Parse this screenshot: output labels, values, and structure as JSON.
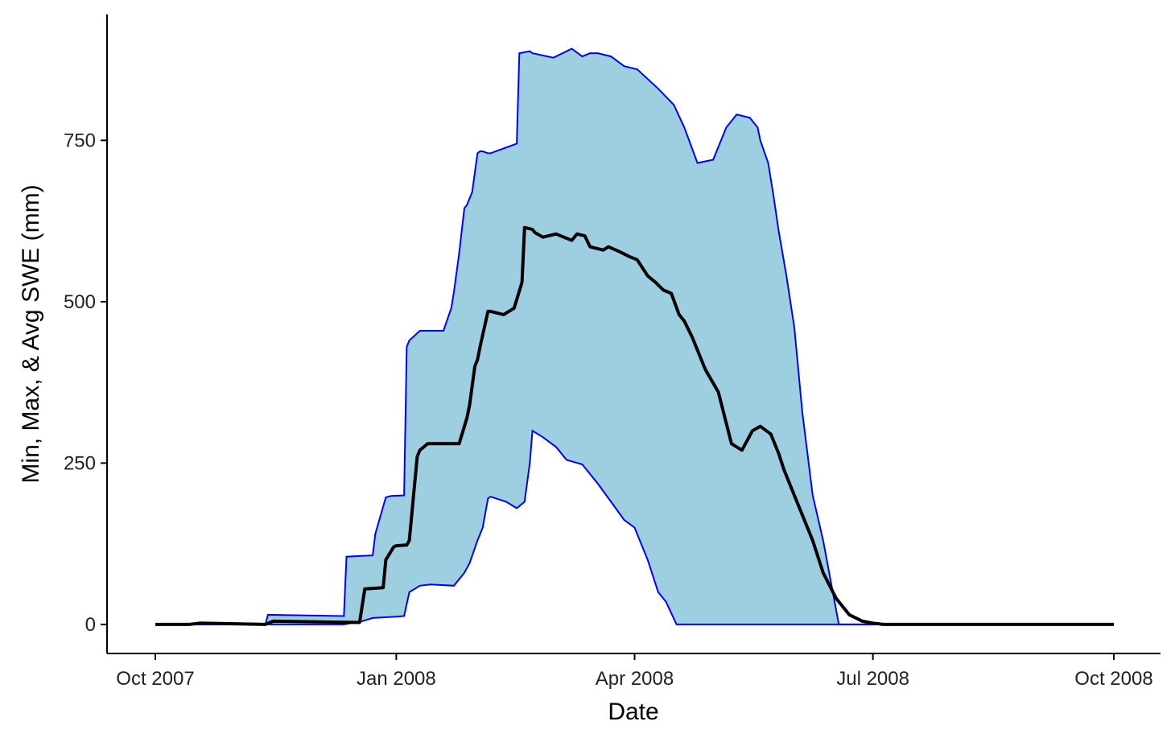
{
  "chart_data": {
    "type": "area",
    "title": "",
    "xlabel": "Date",
    "ylabel": "Min, Max, & Avg SWE (mm)",
    "xlim": [
      "2007-10-01",
      "2008-10-01"
    ],
    "ylim": [
      -45,
      945
    ],
    "x_ticks": [
      {
        "date": "2007-10-01",
        "label": "Oct 2007"
      },
      {
        "date": "2008-01-01",
        "label": "Jan 2008"
      },
      {
        "date": "2008-04-01",
        "label": "Apr 2008"
      },
      {
        "date": "2008-07-01",
        "label": "Jul 2008"
      },
      {
        "date": "2008-10-01",
        "label": "Oct 2008"
      }
    ],
    "y_ticks": [
      0,
      250,
      500,
      750
    ],
    "grid": false,
    "colors": {
      "band_fill": "#9ecfe0",
      "band_edge": "#0000ff",
      "avg_line": "#000000"
    },
    "series": [
      {
        "role": "max",
        "x": [
          "2007-10-01",
          "2007-11-12",
          "2007-11-13",
          "2007-12-12",
          "2007-12-13",
          "2007-12-23",
          "2007-12-24",
          "2007-12-28",
          "2007-12-30",
          "2008-01-04",
          "2008-01-05",
          "2008-01-06",
          "2008-01-10",
          "2008-01-19",
          "2008-01-22",
          "2008-01-23",
          "2008-01-25",
          "2008-01-27",
          "2008-01-28",
          "2008-01-30",
          "2008-02-01",
          "2008-02-02",
          "2008-02-03",
          "2008-02-05",
          "2008-02-06",
          "2008-02-16",
          "2008-02-17",
          "2008-02-21",
          "2008-02-22",
          "2008-03-01",
          "2008-03-07",
          "2008-03-08",
          "2008-03-12",
          "2008-03-15",
          "2008-03-18",
          "2008-03-23",
          "2008-03-28",
          "2008-04-02",
          "2008-04-06",
          "2008-04-10",
          "2008-04-16",
          "2008-04-20",
          "2008-04-25",
          "2008-05-01",
          "2008-05-06",
          "2008-05-10",
          "2008-05-15",
          "2008-05-18",
          "2008-05-19",
          "2008-05-22",
          "2008-05-24",
          "2008-05-26",
          "2008-05-29",
          "2008-06-01",
          "2008-06-04",
          "2008-06-08",
          "2008-06-12",
          "2008-06-18",
          "2008-06-25",
          "2008-07-01",
          "2008-07-05",
          "2008-07-10",
          "2008-07-15",
          "2008-07-20",
          "2008-07-27",
          "2008-10-01"
        ],
        "y": [
          0,
          0,
          15,
          13,
          105,
          107,
          140,
          197,
          199,
          200,
          430,
          440,
          455,
          455,
          490,
          515,
          575,
          645,
          650,
          670,
          730,
          733,
          733,
          730,
          730,
          745,
          885,
          888,
          885,
          878,
          890,
          892,
          880,
          885,
          885,
          880,
          865,
          860,
          845,
          830,
          805,
          770,
          715,
          720,
          770,
          790,
          785,
          770,
          750,
          715,
          665,
          610,
          540,
          460,
          330,
          200,
          130,
          0,
          0,
          0,
          0,
          0,
          0,
          0,
          0,
          0
        ]
      },
      {
        "role": "min",
        "x": [
          "2007-10-01",
          "2007-12-12",
          "2007-12-19",
          "2007-12-23",
          "2008-01-01",
          "2008-01-04",
          "2008-01-06",
          "2008-01-10",
          "2008-01-14",
          "2008-01-23",
          "2008-01-27",
          "2008-01-29",
          "2008-02-01",
          "2008-02-03",
          "2008-02-05",
          "2008-02-06",
          "2008-02-12",
          "2008-02-16",
          "2008-02-19",
          "2008-02-21",
          "2008-02-22",
          "2008-02-26",
          "2008-03-02",
          "2008-03-06",
          "2008-03-12",
          "2008-03-18",
          "2008-03-23",
          "2008-03-28",
          "2008-04-01",
          "2008-04-06",
          "2008-04-10",
          "2008-04-13",
          "2008-04-17",
          "2008-04-20",
          "2008-04-24",
          "2008-04-28",
          "2008-05-02",
          "2008-05-05",
          "2008-10-01"
        ],
        "y": [
          0,
          0,
          5,
          10,
          12,
          13,
          50,
          60,
          62,
          60,
          80,
          95,
          130,
          150,
          195,
          198,
          190,
          180,
          190,
          250,
          300,
          290,
          275,
          255,
          248,
          218,
          190,
          162,
          150,
          100,
          50,
          35,
          0,
          0,
          0,
          0,
          0,
          0,
          0
        ]
      },
      {
        "role": "avg",
        "x": [
          "2007-10-01",
          "2007-10-14",
          "2007-10-18",
          "2007-11-12",
          "2007-11-15",
          "2007-12-18",
          "2007-12-20",
          "2007-12-27",
          "2007-12-28",
          "2007-12-31",
          "2008-01-01",
          "2008-01-05",
          "2008-01-06",
          "2008-01-09",
          "2008-01-10",
          "2008-01-13",
          "2008-01-25",
          "2008-01-28",
          "2008-01-29",
          "2008-01-31",
          "2008-02-01",
          "2008-02-02",
          "2008-02-05",
          "2008-02-06",
          "2008-02-11",
          "2008-02-15",
          "2008-02-18",
          "2008-02-19",
          "2008-02-22",
          "2008-02-23",
          "2008-02-26",
          "2008-03-02",
          "2008-03-08",
          "2008-03-10",
          "2008-03-13",
          "2008-03-15",
          "2008-03-20",
          "2008-03-22",
          "2008-03-26",
          "2008-03-30",
          "2008-04-02",
          "2008-04-06",
          "2008-04-09",
          "2008-04-12",
          "2008-04-15",
          "2008-04-18",
          "2008-04-20",
          "2008-04-23",
          "2008-04-28",
          "2008-05-03",
          "2008-05-08",
          "2008-05-12",
          "2008-05-16",
          "2008-05-19",
          "2008-05-23",
          "2008-05-26",
          "2008-05-28",
          "2008-05-30",
          "2008-06-01",
          "2008-06-04",
          "2008-06-08",
          "2008-06-12",
          "2008-06-17",
          "2008-06-22",
          "2008-06-27",
          "2008-07-01",
          "2008-07-05",
          "2008-07-10",
          "2008-07-20",
          "2008-10-01"
        ],
        "y": [
          0,
          0,
          2,
          0,
          5,
          3,
          55,
          57,
          100,
          120,
          122,
          123,
          130,
          260,
          270,
          280,
          280,
          320,
          340,
          400,
          410,
          430,
          485,
          485,
          480,
          490,
          530,
          615,
          612,
          607,
          600,
          605,
          595,
          605,
          602,
          585,
          580,
          585,
          578,
          570,
          565,
          540,
          530,
          518,
          513,
          480,
          470,
          445,
          395,
          360,
          280,
          270,
          300,
          307,
          295,
          265,
          240,
          220,
          200,
          170,
          130,
          80,
          40,
          15,
          5,
          2,
          0,
          0,
          0,
          0
        ]
      }
    ]
  }
}
